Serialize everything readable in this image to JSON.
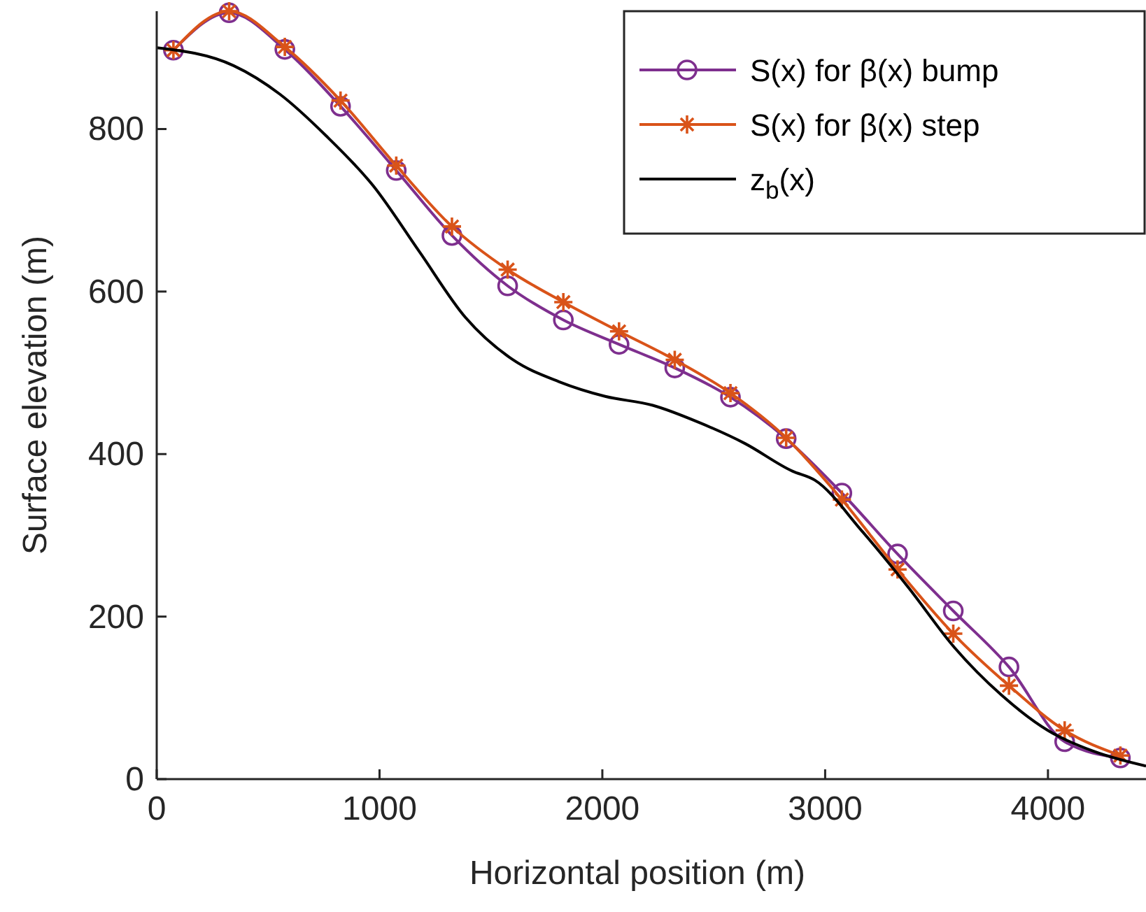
{
  "chart_data": {
    "type": "line",
    "xlabel": "Horizontal position (m)",
    "ylabel": "Surface elevation (m)",
    "xlim": [
      0,
      4440
    ],
    "ylim": [
      0,
      945
    ],
    "xticks": [
      0,
      1000,
      2000,
      3000,
      4000
    ],
    "yticks": [
      0,
      200,
      400,
      600,
      800
    ],
    "grid": false,
    "legend": "top right",
    "series": [
      {
        "name": "S(x) for β(x) bump",
        "color": "#7e2f8e",
        "marker": "circle",
        "x": [
          75,
          325,
          575,
          825,
          1075,
          1325,
          1575,
          1825,
          2075,
          2325,
          2575,
          2825,
          3075,
          3325,
          3575,
          3825,
          4075,
          4325
        ],
        "values": [
          897,
          943,
          898,
          828,
          749,
          669,
          607,
          565,
          535,
          506,
          470,
          419,
          352,
          277,
          207,
          138,
          46,
          26
        ]
      },
      {
        "name": "S(x) for β(x) step",
        "color": "#d95319",
        "marker": "cross",
        "x": [
          75,
          325,
          575,
          825,
          1075,
          1325,
          1575,
          1825,
          2075,
          2325,
          2575,
          2825,
          3075,
          3325,
          3575,
          3825,
          4075,
          4325
        ],
        "values": [
          897,
          945,
          901,
          835,
          755,
          680,
          627,
          587,
          551,
          516,
          475,
          420,
          344,
          258,
          179,
          115,
          60,
          29
        ]
      },
      {
        "name": "z$_{b}$(x)",
        "color": "#000000",
        "marker": "none",
        "x": [
          0,
          345,
          552,
          759,
          972,
          1179,
          1386,
          1599,
          1806,
          2013,
          2226,
          2433,
          2640,
          2853,
          2953,
          3166,
          3373,
          3580,
          3793,
          3999,
          4207,
          4440
        ],
        "values": [
          900,
          878,
          843,
          792,
          730,
          649,
          568,
          516,
          489,
          471,
          460,
          439,
          413,
          379,
          368,
          305,
          236,
          162,
          103,
          60,
          34,
          16
        ]
      }
    ]
  }
}
